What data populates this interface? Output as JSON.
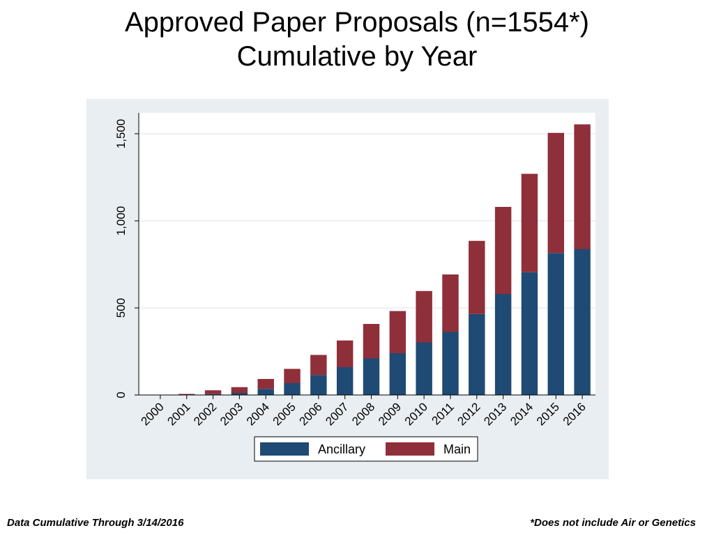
{
  "title": {
    "line1": "Approved Paper Proposals (n=1554*)",
    "line2": "Cumulative by Year"
  },
  "footer": {
    "left": "Data Cumulative Through 3/14/2016",
    "right": "*Does not include Air or Genetics"
  },
  "colors": {
    "ancillary": "#1f4a73",
    "main": "#8f2f3a",
    "plot_background": "#ffffff",
    "outer_background": "#e9eef2",
    "grid": "#e3e8ec"
  },
  "chart_data": {
    "type": "bar",
    "stacked": true,
    "categories": [
      "2000",
      "2001",
      "2002",
      "2003",
      "2004",
      "2005",
      "2006",
      "2007",
      "2008",
      "2009",
      "2010",
      "2011",
      "2012",
      "2013",
      "2014",
      "2015",
      "2016"
    ],
    "series": [
      {
        "name": "Ancillary",
        "values": [
          1,
          2,
          5,
          12,
          35,
          68,
          115,
          160,
          210,
          240,
          302,
          362,
          465,
          580,
          705,
          815,
          838
        ]
      },
      {
        "name": "Main",
        "values": [
          1,
          4,
          22,
          33,
          57,
          82,
          115,
          153,
          198,
          242,
          295,
          330,
          420,
          500,
          565,
          690,
          716
        ]
      }
    ],
    "yticks": [
      0,
      500,
      1000,
      1500
    ],
    "ytick_labels": [
      "0",
      "500",
      "1,000",
      "1,500"
    ],
    "ylim": [
      0,
      1620
    ],
    "grid": true,
    "legend_position": "bottom"
  }
}
